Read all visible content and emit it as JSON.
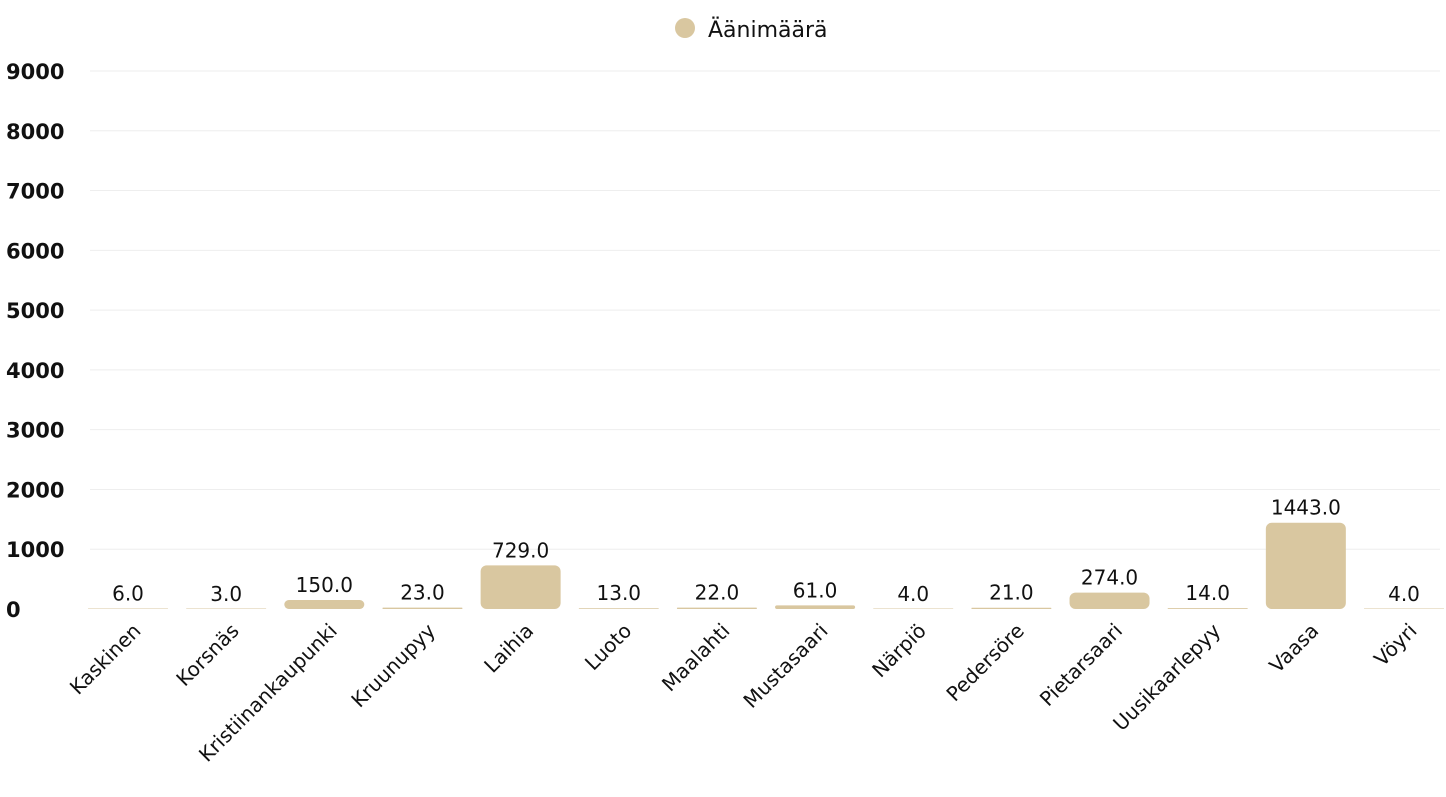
{
  "chart_data": {
    "type": "bar",
    "categories": [
      "Kaskinen",
      "Korsnäs",
      "Kristiinankaupunki",
      "Kruunupyy",
      "Laihia",
      "Luoto",
      "Maalahti",
      "Mustasaari",
      "Närpiö",
      "Pedersöre",
      "Pietarsaari",
      "Uusikaarlepyy",
      "Vaasa",
      "Vöyri"
    ],
    "series": [
      {
        "name": "Äänimäärä",
        "values": [
          6.0,
          3.0,
          150.0,
          23.0,
          729.0,
          13.0,
          22.0,
          61.0,
          4.0,
          21.0,
          274.0,
          14.0,
          1443.0,
          4.0
        ],
        "labels": [
          "6.0",
          "3.0",
          "150.0",
          "23.0",
          "729.0",
          "13.0",
          "22.0",
          "61.0",
          "4.0",
          "21.0",
          "274.0",
          "14.0",
          "1443.0",
          "4.0"
        ]
      }
    ],
    "yticks": [
      "0",
      "1000",
      "2000",
      "3000",
      "4000",
      "5000",
      "6000",
      "7000",
      "8000",
      "9000"
    ],
    "ylim": [
      0,
      9000
    ],
    "legend_position": "top-center",
    "grid": true,
    "colors": {
      "bar": "#d9c7a0",
      "grid": "#eeeeee",
      "text": "#111111"
    }
  }
}
